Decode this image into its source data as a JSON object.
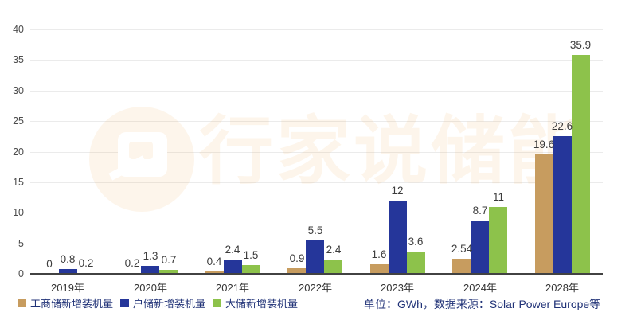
{
  "chart_data": {
    "type": "bar",
    "title": "",
    "categories": [
      "2019年",
      "2020年",
      "2021年",
      "2022年",
      "2023年",
      "2024年",
      "2028年"
    ],
    "series": [
      {
        "name": "工商储新增装机量",
        "color": "#C79C5F",
        "values": [
          0,
          0.2,
          0.4,
          0.9,
          1.6,
          2.54,
          19.6
        ],
        "labels": [
          "0",
          "0.2",
          "0.4",
          "0.9",
          "1.6",
          "2.54",
          "19.6"
        ]
      },
      {
        "name": "户储新增装机量",
        "color": "#25369A",
        "values": [
          0.8,
          1.3,
          2.4,
          5.5,
          12,
          8.7,
          22.6
        ],
        "labels": [
          "0.8",
          "1.3",
          "2.4",
          "5.5",
          "12",
          "8.7",
          "22.6"
        ]
      },
      {
        "name": "大储新增装机量",
        "color": "#8DC24B",
        "values": [
          0.2,
          0.7,
          1.5,
          2.4,
          3.6,
          11,
          35.9
        ],
        "labels": [
          "0.2",
          "0.7",
          "1.5",
          "2.4",
          "3.6",
          "11",
          "35.9"
        ]
      }
    ],
    "ylim": [
      0,
      40
    ],
    "yticks": [
      0,
      5,
      10,
      15,
      20,
      25,
      30,
      35,
      40
    ],
    "grid": true,
    "legend_position": "bottom-left",
    "unit_note": "单位：GWh，数据来源：Solar Power Europe等"
  },
  "watermark": {
    "text": "行家说储能"
  },
  "colors": {
    "text_navy": "#203277",
    "axis_text": "#4C4C4C",
    "value_label": "#3C3C3C",
    "gridline": "#EBEBEB",
    "baseline": "#424242",
    "watermark_tint": "rgba(238,156,62,0.10)"
  }
}
